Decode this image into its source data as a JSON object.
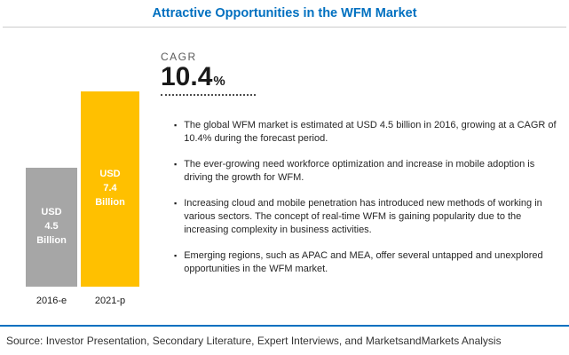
{
  "title": "Attractive Opportunities in the WFM Market",
  "cagr": {
    "label": "CAGR",
    "value": "10.4",
    "unit": "%"
  },
  "chart_data": {
    "type": "bar",
    "title": "Attractive Opportunities in the WFM Market",
    "categories": [
      "2016-e",
      "2021-p"
    ],
    "values": [
      4.5,
      7.4
    ],
    "unit": "USD Billion",
    "bar_value_labels": [
      "USD 4.5 Billion",
      "USD 7.4 Billion"
    ],
    "bar_colors": [
      "#a6a6a6",
      "#ffc000"
    ],
    "ylim": [
      0,
      7.4
    ],
    "annotation": "CAGR 10.4%",
    "legend": "none",
    "grid": false
  },
  "bullets": [
    "The global WFM market is estimated at USD 4.5 billion in 2016, growing at a CAGR of 10.4% during the forecast period.",
    "The ever-growing need workforce optimization and increase in mobile adoption is driving the growth for WFM.",
    "Increasing cloud and mobile penetration has introduced new methods of working in various sectors. The concept of real-time WFM is gaining popularity due to the increasing complexity in business activities.",
    "Emerging regions, such as APAC and MEA, offer several untapped and unexplored opportunities in the WFM market."
  ],
  "source": "Source: Investor Presentation, Secondary Literature, Expert Interviews, and MarketsandMarkets Analysis",
  "colors": {
    "title": "#0070c0",
    "accent_line": "#0070c0",
    "bar_2016": "#a6a6a6",
    "bar_2021": "#ffc000"
  }
}
